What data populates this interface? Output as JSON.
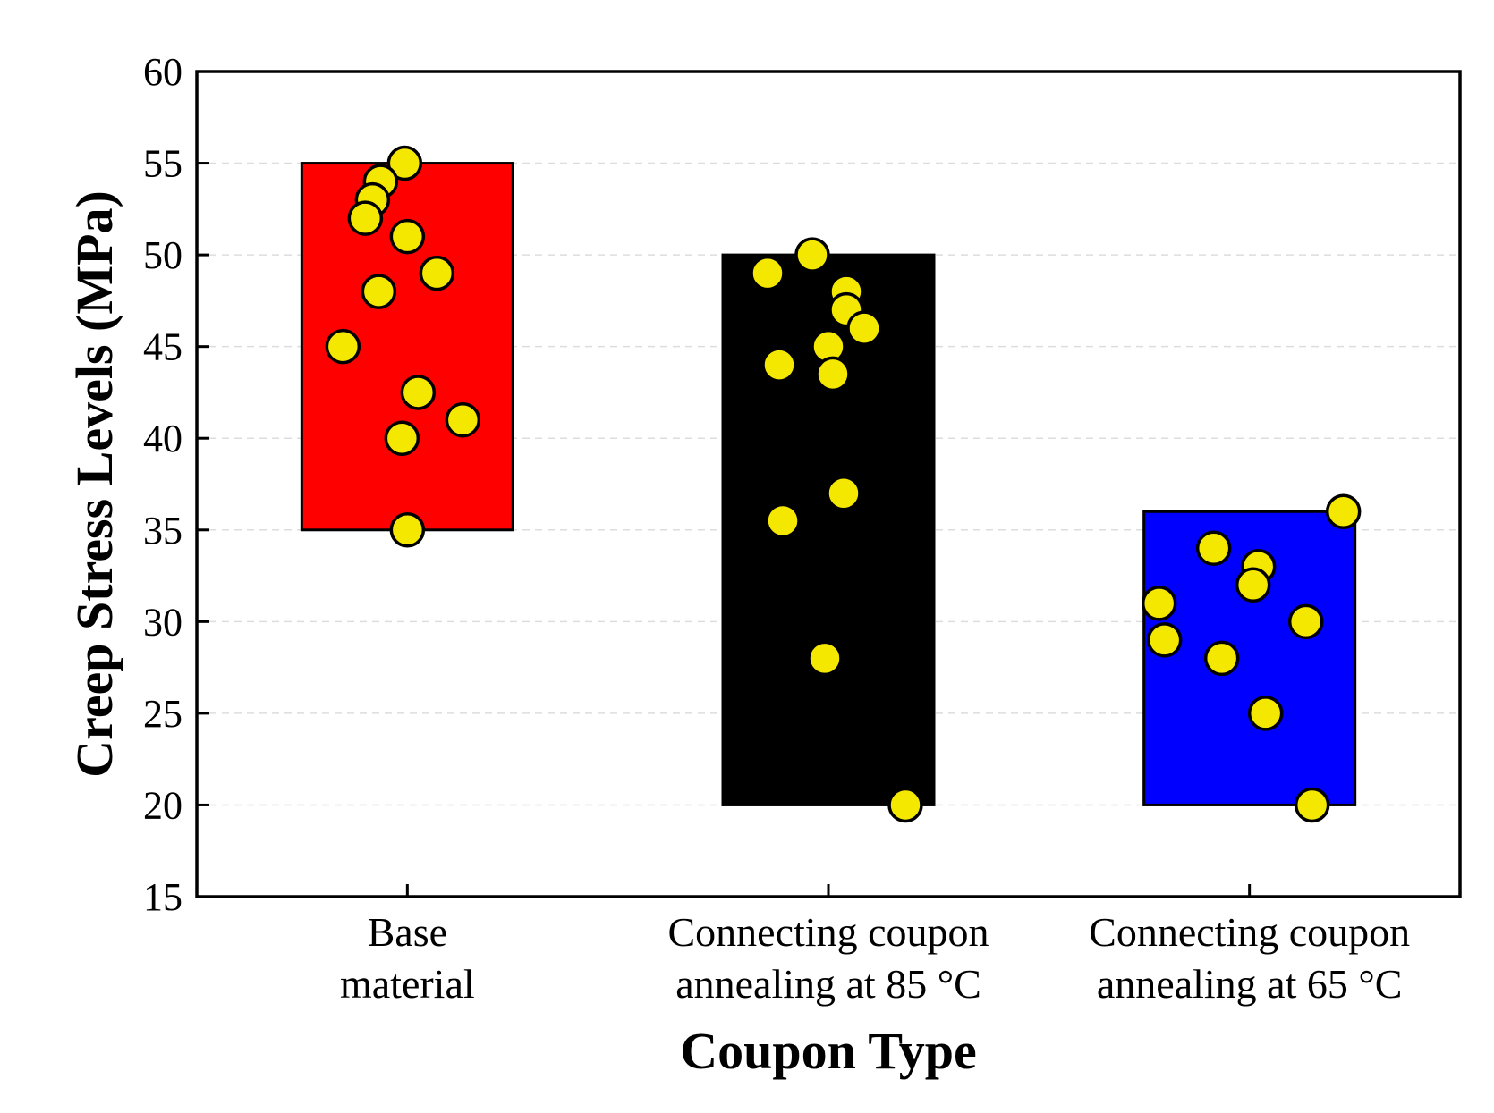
{
  "chart_data": {
    "type": "bar",
    "title": "",
    "xlabel": "Coupon Type",
    "ylabel": "Creep Stress Levels (MPa)",
    "ylim": [
      15,
      60
    ],
    "yticks": [
      15,
      20,
      25,
      30,
      35,
      40,
      45,
      50,
      55,
      60
    ],
    "grid": "horizontal dashed",
    "categories": [
      [
        "Base",
        "material"
      ],
      [
        "Connecting coupon",
        "annealing at 85 °C"
      ],
      [
        "Connecting coupon",
        "annealing at 65 °C"
      ]
    ],
    "ranges": [
      {
        "low": 35,
        "high": 55
      },
      {
        "low": 20,
        "high": 50
      },
      {
        "low": 20,
        "high": 36
      }
    ],
    "colors": [
      "#ff0000",
      "#000000",
      "#0000ff"
    ],
    "point_color": "#f5e800",
    "points": [
      [
        55,
        54,
        53,
        52,
        51,
        49,
        48,
        45,
        42.5,
        41,
        40,
        35
      ],
      [
        50,
        49,
        48,
        47,
        46,
        45,
        44,
        43.5,
        37,
        35.5,
        28,
        20
      ],
      [
        36,
        34,
        33,
        32,
        31,
        30,
        29,
        28,
        25,
        20
      ]
    ]
  }
}
